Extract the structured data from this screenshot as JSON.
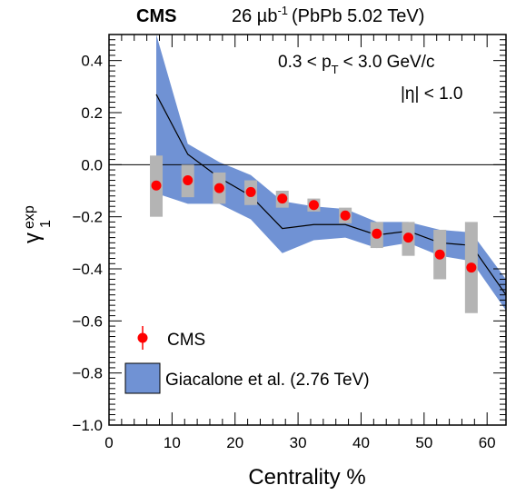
{
  "chart_data": {
    "type": "scatter",
    "header": {
      "experiment": "CMS",
      "lumi_value": "26 µb",
      "lumi_exp": "-1",
      "system": "(PbPb 5.02 TeV)"
    },
    "annotations": {
      "pt_range": {
        "lo": "0.3 < p",
        "sub": "T",
        "hi": "< 3.0 GeV/c"
      },
      "eta_cut": "|η| < 1.0"
    },
    "xlabel": "Centrality %",
    "ylabel": {
      "main": "γ",
      "sup": "exp",
      "sub": "1"
    },
    "xlim": [
      0,
      63
    ],
    "ylim": [
      -1.0,
      0.5
    ],
    "xticks": [
      "0",
      "10",
      "20",
      "30",
      "40",
      "50",
      "60"
    ],
    "yticks": [
      "−1.0",
      "−0.8",
      "−0.6",
      "−0.4",
      "−0.2",
      "0.0",
      "0.2",
      "0.4"
    ],
    "reference_line_y": 0.0,
    "series": [
      {
        "name": "CMS",
        "kind": "points",
        "color": "#ff0000",
        "syst_color": "#b4b4b4",
        "points": [
          {
            "x": 7.5,
            "y": -0.08,
            "syst_lo": -0.2,
            "syst_hi": 0.035
          },
          {
            "x": 12.5,
            "y": -0.06,
            "syst_lo": -0.125,
            "syst_hi": 0.0
          },
          {
            "x": 17.5,
            "y": -0.09,
            "syst_lo": -0.15,
            "syst_hi": -0.03
          },
          {
            "x": 22.5,
            "y": -0.105,
            "syst_lo": -0.155,
            "syst_hi": -0.06
          },
          {
            "x": 27.5,
            "y": -0.13,
            "syst_lo": -0.165,
            "syst_hi": -0.1
          },
          {
            "x": 32.5,
            "y": -0.155,
            "syst_lo": -0.18,
            "syst_hi": -0.13
          },
          {
            "x": 37.5,
            "y": -0.195,
            "syst_lo": -0.225,
            "syst_hi": -0.165
          },
          {
            "x": 42.5,
            "y": -0.265,
            "syst_lo": -0.32,
            "syst_hi": -0.22
          },
          {
            "x": 47.5,
            "y": -0.28,
            "syst_lo": -0.35,
            "syst_hi": -0.22
          },
          {
            "x": 52.5,
            "y": -0.345,
            "syst_lo": -0.44,
            "syst_hi": -0.25
          },
          {
            "x": 57.5,
            "y": -0.395,
            "syst_lo": -0.57,
            "syst_hi": -0.22
          }
        ]
      },
      {
        "name": "Giacalone et al. (2.76 TeV)",
        "kind": "band",
        "color": "#7092d4",
        "edge_color": "#3a5ba8",
        "x": [
          7.5,
          12.5,
          17.5,
          22.5,
          27.5,
          32.5,
          37.5,
          42.5,
          47.5,
          52.5,
          57.5,
          63
        ],
        "central": [
          0.27,
          0.04,
          -0.05,
          -0.12,
          -0.245,
          -0.23,
          -0.23,
          -0.27,
          -0.255,
          -0.3,
          -0.31,
          -0.5
        ],
        "upper": [
          0.5,
          0.08,
          0.01,
          -0.04,
          -0.14,
          -0.16,
          -0.17,
          -0.22,
          -0.22,
          -0.25,
          -0.26,
          -0.44
        ],
        "lower": [
          -0.11,
          -0.15,
          -0.15,
          -0.21,
          -0.34,
          -0.29,
          -0.28,
          -0.32,
          -0.3,
          -0.35,
          -0.37,
          -0.56
        ]
      }
    ],
    "legend": {
      "position": "bottom-left",
      "entries": [
        {
          "label": "CMS",
          "series": 0
        },
        {
          "label": "Giacalone et al. (2.76 TeV)",
          "series": 1
        }
      ]
    }
  }
}
